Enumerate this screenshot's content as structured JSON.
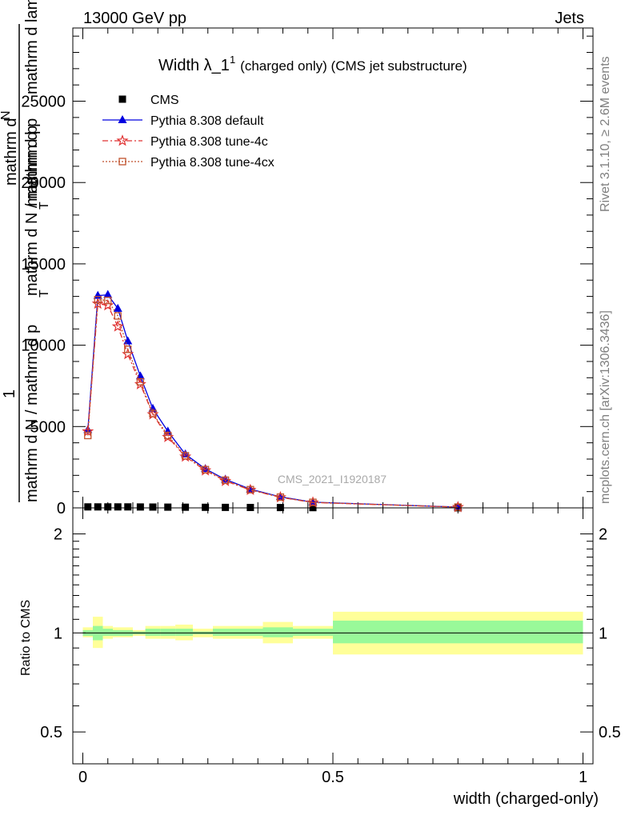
{
  "header": {
    "left": "13000 GeV pp",
    "right": "Jets"
  },
  "side_labels": {
    "rivet": "Rivet 3.1.10, ≥ 2.6M events",
    "mcplots": "mcplots.cern.ch [arXiv:1306.3436]"
  },
  "colors": {
    "cms": "#000000",
    "default": "#0000e0",
    "tune4c": "#e03030",
    "tune4cx": "#c0522d",
    "band_inner": "#99f999",
    "band_outer": "#ffff99"
  },
  "chart_data": [
    {
      "type": "line",
      "title_main": "Width λ_1",
      "title_sup": "1",
      "title_rest": "(charged only) (CMS jet substructure)",
      "ylabel_top": "mathrm d",
      "ylabel_top2": "N",
      "ylabel_lines": [
        "mathrm d N / mathrm d p",
        "T",
        "mathrm d p",
        "T",
        "mathrm d lambda"
      ],
      "ylabel_frac_num": "1",
      "ylabel_frac_den": "mathrm d N / mathrm d p",
      "watermark": "CMS_2021_I1920187",
      "xlim": [
        -0.02,
        1.02
      ],
      "ylim": [
        0,
        29500
      ],
      "y_ticks": [
        0,
        5000,
        10000,
        15000,
        20000,
        25000
      ],
      "y_tick_labels": [
        "0",
        "5000",
        "10000",
        "15000",
        "20000",
        "25000"
      ],
      "legend_position": "top-left",
      "x": [
        0.01,
        0.03,
        0.05,
        0.07,
        0.09,
        0.115,
        0.14,
        0.17,
        0.205,
        0.245,
        0.285,
        0.335,
        0.395,
        0.46,
        0.75
      ],
      "series": [
        {
          "name": "CMS",
          "marker": "square",
          "values": [
            60,
            60,
            60,
            60,
            60,
            55,
            50,
            45,
            40,
            35,
            30,
            25,
            20,
            15,
            5
          ]
        },
        {
          "name": "Pythia 8.308 default",
          "marker": "triangle",
          "values": [
            4800,
            13050,
            13100,
            12250,
            10250,
            8100,
            6100,
            4700,
            3300,
            2400,
            1750,
            1150,
            680,
            350,
            50
          ]
        },
        {
          "name": "Pythia 8.308 tune-4c",
          "marker": "star",
          "values": [
            4700,
            12550,
            12450,
            11150,
            9450,
            7600,
            5750,
            4350,
            3150,
            2300,
            1650,
            1100,
            650,
            330,
            45
          ]
        },
        {
          "name": "Pythia 8.308 tune-4cx",
          "marker": "open-square",
          "values": [
            4450,
            12800,
            12750,
            11800,
            9750,
            7750,
            5800,
            4450,
            3200,
            2350,
            1700,
            1120,
            660,
            340,
            48
          ]
        }
      ]
    },
    {
      "type": "area",
      "ylabel": "Ratio to CMS",
      "xlabel": "width (charged-only)",
      "xlim": [
        -0.02,
        1.02
      ],
      "ylim": [
        0.4,
        2.4
      ],
      "y_scale": "log",
      "x_ticks": [
        0,
        0.5,
        1
      ],
      "x_tick_labels": [
        "0",
        "0.5",
        "1"
      ],
      "y_ticks": [
        0.5,
        1,
        2
      ],
      "y_tick_labels": [
        "0.5",
        "1",
        "2"
      ],
      "bins": [
        {
          "lo": 0.0,
          "hi": 0.02,
          "inner": [
            0.98,
            1.02
          ],
          "outer": [
            0.97,
            1.04
          ]
        },
        {
          "lo": 0.02,
          "hi": 0.04,
          "inner": [
            0.95,
            1.05
          ],
          "outer": [
            0.9,
            1.12
          ]
        },
        {
          "lo": 0.04,
          "hi": 0.06,
          "inner": [
            0.98,
            1.03
          ],
          "outer": [
            0.96,
            1.05
          ]
        },
        {
          "lo": 0.06,
          "hi": 0.08,
          "inner": [
            0.98,
            1.02
          ],
          "outer": [
            0.97,
            1.04
          ]
        },
        {
          "lo": 0.08,
          "hi": 0.1,
          "inner": [
            0.98,
            1.02
          ],
          "outer": [
            0.97,
            1.04
          ]
        },
        {
          "lo": 0.1,
          "hi": 0.125,
          "inner": [
            0.99,
            1.01
          ],
          "outer": [
            0.98,
            1.02
          ]
        },
        {
          "lo": 0.125,
          "hi": 0.155,
          "inner": [
            0.98,
            1.03
          ],
          "outer": [
            0.96,
            1.05
          ]
        },
        {
          "lo": 0.155,
          "hi": 0.185,
          "inner": [
            0.98,
            1.03
          ],
          "outer": [
            0.96,
            1.05
          ]
        },
        {
          "lo": 0.185,
          "hi": 0.22,
          "inner": [
            0.98,
            1.03
          ],
          "outer": [
            0.95,
            1.06
          ]
        },
        {
          "lo": 0.22,
          "hi": 0.26,
          "inner": [
            0.99,
            1.01
          ],
          "outer": [
            0.97,
            1.03
          ]
        },
        {
          "lo": 0.26,
          "hi": 0.3,
          "inner": [
            0.98,
            1.03
          ],
          "outer": [
            0.96,
            1.05
          ]
        },
        {
          "lo": 0.3,
          "hi": 0.36,
          "inner": [
            0.98,
            1.03
          ],
          "outer": [
            0.96,
            1.05
          ]
        },
        {
          "lo": 0.36,
          "hi": 0.42,
          "inner": [
            0.97,
            1.04
          ],
          "outer": [
            0.93,
            1.08
          ]
        },
        {
          "lo": 0.42,
          "hi": 0.5,
          "inner": [
            0.98,
            1.03
          ],
          "outer": [
            0.96,
            1.05
          ]
        },
        {
          "lo": 0.5,
          "hi": 1.0,
          "inner": [
            0.93,
            1.09
          ],
          "outer": [
            0.86,
            1.16
          ]
        }
      ]
    }
  ]
}
